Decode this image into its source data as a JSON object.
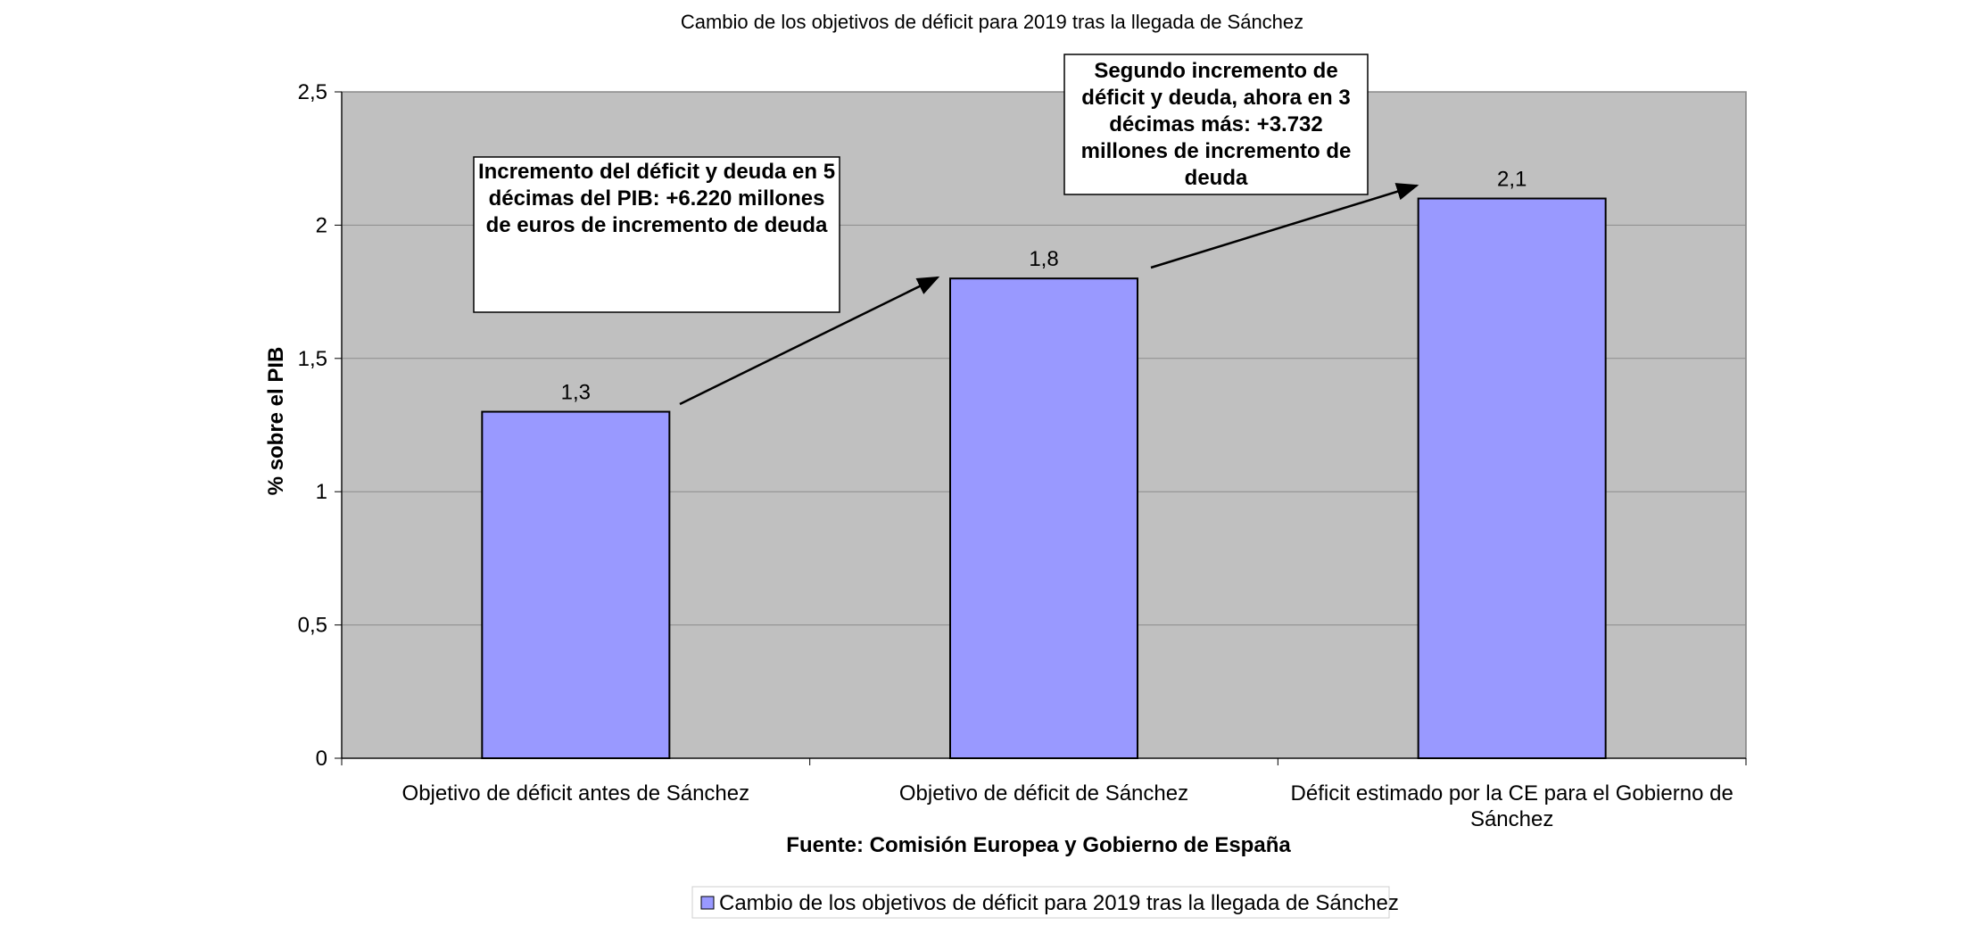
{
  "chart_data": {
    "type": "bar",
    "title": "Cambio de los objetivos de déficit para 2019 tras la llegada de Sánchez",
    "categories": [
      [
        "Objetivo de déficit antes de Sánchez"
      ],
      [
        "Objetivo de déficit de Sánchez"
      ],
      [
        "Déficit estimado por la CE para el Gobierno de",
        "Sánchez"
      ]
    ],
    "values": [
      1.3,
      1.8,
      2.1
    ],
    "data_labels": [
      "1,3",
      "1,8",
      "2,1"
    ],
    "ylabel": "% sobre el PIB",
    "xlabel": "Fuente: Comisión Europea y Gobierno de España",
    "ylim": [
      0,
      2.5
    ],
    "yticks": [
      0,
      0.5,
      1,
      1.5,
      2,
      2.5
    ],
    "ytick_labels": [
      "0",
      "0,5",
      "1",
      "1,5",
      "2",
      "2,5"
    ],
    "grid": true,
    "legend": {
      "position": "bottom-center",
      "label": "Cambio de los objetivos de déficit para 2019 tras la llegada de Sánchez"
    },
    "annotations": [
      {
        "name": "annotation-first-increase",
        "lines": [
          "Incremento del déficit y deuda en 5",
          "décimas del PIB: +6.220 millones",
          "de euros de incremento de deuda"
        ],
        "from_category": 0,
        "to_category": 1
      },
      {
        "name": "annotation-second-increase",
        "lines": [
          "Segundo incremento de",
          "déficit y deuda, ahora en 3",
          "décimas más: +3.732",
          "millones de incremento de",
          "deuda"
        ],
        "from_category": 1,
        "to_category": 2
      }
    ],
    "colors": {
      "bar": "#9999ff",
      "plot_bg": "#c0c0c0",
      "grid": "#8c8c8c"
    }
  }
}
